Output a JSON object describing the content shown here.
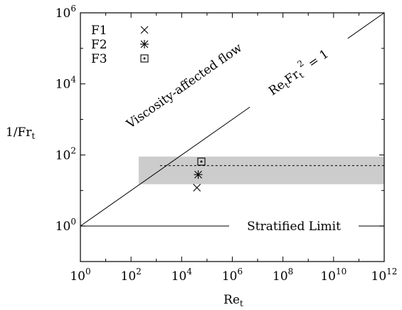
{
  "chart_data": {
    "type": "scatter",
    "x_scale": "log",
    "y_scale": "log",
    "xlim": [
      1,
      1000000000000
    ],
    "ylim": [
      0.1,
      1000000
    ],
    "xlabel": {
      "main": "Re",
      "sub": "t"
    },
    "ylabel": {
      "main": "1/Fr",
      "sub": "t"
    },
    "x_ticks": [
      {
        "value": 1,
        "base": "10",
        "exp": "0"
      },
      {
        "value": 100,
        "base": "10",
        "exp": "2"
      },
      {
        "value": 10000,
        "base": "10",
        "exp": "4"
      },
      {
        "value": 1000000,
        "base": "10",
        "exp": "6"
      },
      {
        "value": 100000000,
        "base": "10",
        "exp": "8"
      },
      {
        "value": 10000000000,
        "base": "10",
        "exp": "10"
      },
      {
        "value": 1000000000000,
        "base": "10",
        "exp": "12"
      }
    ],
    "y_ticks": [
      {
        "value": 1,
        "base": "10",
        "exp": "0"
      },
      {
        "value": 100,
        "base": "10",
        "exp": "2"
      },
      {
        "value": 10000,
        "base": "10",
        "exp": "4"
      },
      {
        "value": 1000000,
        "base": "10",
        "exp": "6"
      }
    ],
    "series": [
      {
        "name": "F1",
        "marker": "x",
        "points": [
          {
            "x": 40000,
            "y": 12
          }
        ]
      },
      {
        "name": "F2",
        "marker": "asterisk",
        "points": [
          {
            "x": 45000,
            "y": 28
          }
        ]
      },
      {
        "name": "F3",
        "marker": "square-dot",
        "points": [
          {
            "x": 60000,
            "y": 65
          }
        ]
      }
    ],
    "reference_lines": {
      "viscous_line": {
        "points": [
          {
            "x": 1,
            "y": 1
          },
          {
            "x": 1000000000000,
            "y": 1000000
          }
        ],
        "label_parts": [
          "Re",
          "t",
          "Fr",
          "t",
          "2",
          " = 1"
        ]
      },
      "stratified_limit": {
        "y": 1,
        "label": "Stratified Limit"
      },
      "dashed_line": {
        "y": 50
      }
    },
    "shaded_band": {
      "y_min": 15,
      "y_max": 90,
      "x_start": 200,
      "x_end": 1000000000000,
      "color": "#cccccc"
    },
    "region_label": "Viscosity-affected flow",
    "legend": {
      "position": "top-left"
    },
    "grid": false
  }
}
